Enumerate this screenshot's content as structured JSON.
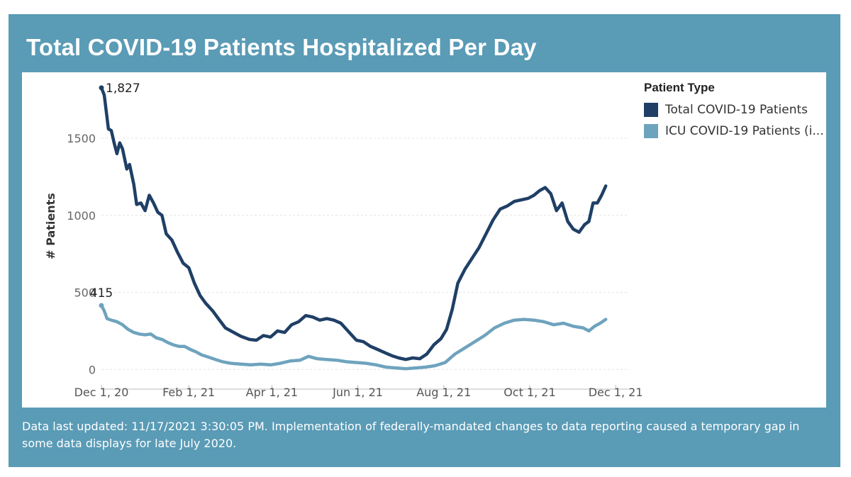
{
  "title": "Total COVID-19 Patients Hospitalized Per Day",
  "footnote": "Data last updated: 11/17/2021 3:30:05 PM. Implementation of federally-mandated changes to data reporting caused a temporary gap in some data displays for late July 2020.",
  "legend": {
    "title": "Patient Type",
    "items": [
      {
        "label": "Total COVID-19 Patients",
        "color": "#1f3f66"
      },
      {
        "label": "ICU COVID-19 Patients (i...",
        "color": "#6ea3be"
      }
    ]
  },
  "colors": {
    "panel": "#5a9bb6",
    "total": "#1f3f66",
    "icu": "#6ea3be"
  },
  "chart_data": {
    "type": "line",
    "title": "Total COVID-19 Patients Hospitalized Per Day",
    "xlabel": "",
    "ylabel": "# Patients",
    "x_range": [
      "2020-12-01",
      "2021-12-10"
    ],
    "ylim": [
      -40,
      1900
    ],
    "y_ticks": [
      0,
      500,
      1000,
      1500
    ],
    "y_tick_labels": [
      "0",
      "500",
      "1000",
      "1500"
    ],
    "x_ticks": [
      "2020-12-01",
      "2021-02-01",
      "2021-04-01",
      "2021-06-01",
      "2021-08-01",
      "2021-10-01",
      "2021-12-01"
    ],
    "x_tick_labels": [
      "Dec 1, 20",
      "Feb 1, 21",
      "Apr 1, 21",
      "Jun 1, 21",
      "Aug 1, 21",
      "Oct 1, 21",
      "Dec 1, 21"
    ],
    "grid": "horizontal dashed",
    "legend": "top-right",
    "series": [
      {
        "name": "Total COVID-19 Patients",
        "color": "#1f3f66",
        "points": [
          [
            "2020-12-01",
            1827
          ],
          [
            "2020-12-03",
            1780
          ],
          [
            "2020-12-06",
            1560
          ],
          [
            "2020-12-08",
            1550
          ],
          [
            "2020-12-10",
            1470
          ],
          [
            "2020-12-12",
            1400
          ],
          [
            "2020-12-14",
            1470
          ],
          [
            "2020-12-16",
            1430
          ],
          [
            "2020-12-19",
            1300
          ],
          [
            "2020-12-21",
            1330
          ],
          [
            "2020-12-24",
            1200
          ],
          [
            "2020-12-26",
            1070
          ],
          [
            "2020-12-29",
            1080
          ],
          [
            "2021-01-01",
            1030
          ],
          [
            "2021-01-04",
            1130
          ],
          [
            "2021-01-07",
            1080
          ],
          [
            "2021-01-10",
            1020
          ],
          [
            "2021-01-13",
            1000
          ],
          [
            "2021-01-16",
            880
          ],
          [
            "2021-01-20",
            840
          ],
          [
            "2021-01-24",
            760
          ],
          [
            "2021-01-28",
            690
          ],
          [
            "2021-02-01",
            660
          ],
          [
            "2021-02-05",
            560
          ],
          [
            "2021-02-09",
            480
          ],
          [
            "2021-02-13",
            430
          ],
          [
            "2021-02-18",
            380
          ],
          [
            "2021-02-22",
            330
          ],
          [
            "2021-02-27",
            270
          ],
          [
            "2021-03-05",
            240
          ],
          [
            "2021-03-10",
            215
          ],
          [
            "2021-03-16",
            195
          ],
          [
            "2021-03-21",
            190
          ],
          [
            "2021-03-26",
            220
          ],
          [
            "2021-03-31",
            210
          ],
          [
            "2021-04-05",
            250
          ],
          [
            "2021-04-10",
            240
          ],
          [
            "2021-04-15",
            290
          ],
          [
            "2021-04-20",
            310
          ],
          [
            "2021-04-25",
            350
          ],
          [
            "2021-04-30",
            340
          ],
          [
            "2021-05-05",
            320
          ],
          [
            "2021-05-10",
            330
          ],
          [
            "2021-05-15",
            320
          ],
          [
            "2021-05-20",
            300
          ],
          [
            "2021-05-26",
            240
          ],
          [
            "2021-05-31",
            190
          ],
          [
            "2021-06-05",
            180
          ],
          [
            "2021-06-10",
            150
          ],
          [
            "2021-06-15",
            130
          ],
          [
            "2021-06-20",
            110
          ],
          [
            "2021-06-25",
            90
          ],
          [
            "2021-06-30",
            75
          ],
          [
            "2021-07-05",
            65
          ],
          [
            "2021-07-10",
            75
          ],
          [
            "2021-07-15",
            70
          ],
          [
            "2021-07-20",
            100
          ],
          [
            "2021-07-25",
            160
          ],
          [
            "2021-07-30",
            200
          ],
          [
            "2021-08-03",
            260
          ],
          [
            "2021-08-07",
            390
          ],
          [
            "2021-08-11",
            560
          ],
          [
            "2021-08-16",
            650
          ],
          [
            "2021-08-21",
            720
          ],
          [
            "2021-08-26",
            790
          ],
          [
            "2021-08-31",
            880
          ],
          [
            "2021-09-05",
            970
          ],
          [
            "2021-09-10",
            1040
          ],
          [
            "2021-09-15",
            1060
          ],
          [
            "2021-09-20",
            1090
          ],
          [
            "2021-09-25",
            1100
          ],
          [
            "2021-09-30",
            1110
          ],
          [
            "2021-10-04",
            1130
          ],
          [
            "2021-10-08",
            1160
          ],
          [
            "2021-10-12",
            1180
          ],
          [
            "2021-10-16",
            1140
          ],
          [
            "2021-10-20",
            1030
          ],
          [
            "2021-10-24",
            1080
          ],
          [
            "2021-10-28",
            960
          ],
          [
            "2021-11-01",
            910
          ],
          [
            "2021-11-05",
            890
          ],
          [
            "2021-11-09",
            940
          ],
          [
            "2021-11-12",
            960
          ],
          [
            "2021-11-15",
            1080
          ],
          [
            "2021-11-18",
            1080
          ],
          [
            "2021-11-21",
            1130
          ],
          [
            "2021-11-24",
            1190
          ]
        ]
      },
      {
        "name": "ICU COVID-19 Patients (i...",
        "color": "#6ea3be",
        "points": [
          [
            "2020-12-01",
            415
          ],
          [
            "2020-12-03",
            380
          ],
          [
            "2020-12-05",
            330
          ],
          [
            "2020-12-08",
            320
          ],
          [
            "2020-12-12",
            310
          ],
          [
            "2020-12-16",
            290
          ],
          [
            "2020-12-20",
            260
          ],
          [
            "2020-12-24",
            240
          ],
          [
            "2020-12-28",
            230
          ],
          [
            "2021-01-01",
            225
          ],
          [
            "2021-01-05",
            230
          ],
          [
            "2021-01-09",
            205
          ],
          [
            "2021-01-13",
            195
          ],
          [
            "2021-01-17",
            175
          ],
          [
            "2021-01-21",
            160
          ],
          [
            "2021-01-25",
            150
          ],
          [
            "2021-01-29",
            150
          ],
          [
            "2021-02-02",
            130
          ],
          [
            "2021-02-06",
            115
          ],
          [
            "2021-02-10",
            95
          ],
          [
            "2021-02-15",
            80
          ],
          [
            "2021-02-20",
            65
          ],
          [
            "2021-02-25",
            50
          ],
          [
            "2021-03-03",
            40
          ],
          [
            "2021-03-10",
            35
          ],
          [
            "2021-03-17",
            30
          ],
          [
            "2021-03-24",
            35
          ],
          [
            "2021-03-31",
            30
          ],
          [
            "2021-04-07",
            40
          ],
          [
            "2021-04-14",
            55
          ],
          [
            "2021-04-21",
            60
          ],
          [
            "2021-04-27",
            85
          ],
          [
            "2021-05-03",
            70
          ],
          [
            "2021-05-10",
            65
          ],
          [
            "2021-05-17",
            60
          ],
          [
            "2021-05-24",
            50
          ],
          [
            "2021-05-31",
            45
          ],
          [
            "2021-06-07",
            40
          ],
          [
            "2021-06-14",
            30
          ],
          [
            "2021-06-21",
            15
          ],
          [
            "2021-06-28",
            10
          ],
          [
            "2021-07-05",
            5
          ],
          [
            "2021-07-12",
            10
          ],
          [
            "2021-07-19",
            15
          ],
          [
            "2021-07-26",
            25
          ],
          [
            "2021-08-02",
            45
          ],
          [
            "2021-08-09",
            100
          ],
          [
            "2021-08-16",
            140
          ],
          [
            "2021-08-23",
            180
          ],
          [
            "2021-08-30",
            220
          ],
          [
            "2021-09-06",
            270
          ],
          [
            "2021-09-13",
            300
          ],
          [
            "2021-09-20",
            320
          ],
          [
            "2021-09-27",
            325
          ],
          [
            "2021-10-04",
            320
          ],
          [
            "2021-10-11",
            310
          ],
          [
            "2021-10-18",
            290
          ],
          [
            "2021-10-25",
            300
          ],
          [
            "2021-11-01",
            280
          ],
          [
            "2021-11-08",
            270
          ],
          [
            "2021-11-12",
            250
          ],
          [
            "2021-11-16",
            280
          ],
          [
            "2021-11-20",
            300
          ],
          [
            "2021-11-24",
            325
          ]
        ]
      }
    ],
    "annotations": [
      {
        "series": "Total COVID-19 Patients",
        "x": "2020-12-01",
        "y": 1827,
        "text": "1,827"
      },
      {
        "series": "ICU COVID-19 Patients (i...",
        "x": "2020-12-01",
        "y": 415,
        "text": "415"
      }
    ]
  }
}
